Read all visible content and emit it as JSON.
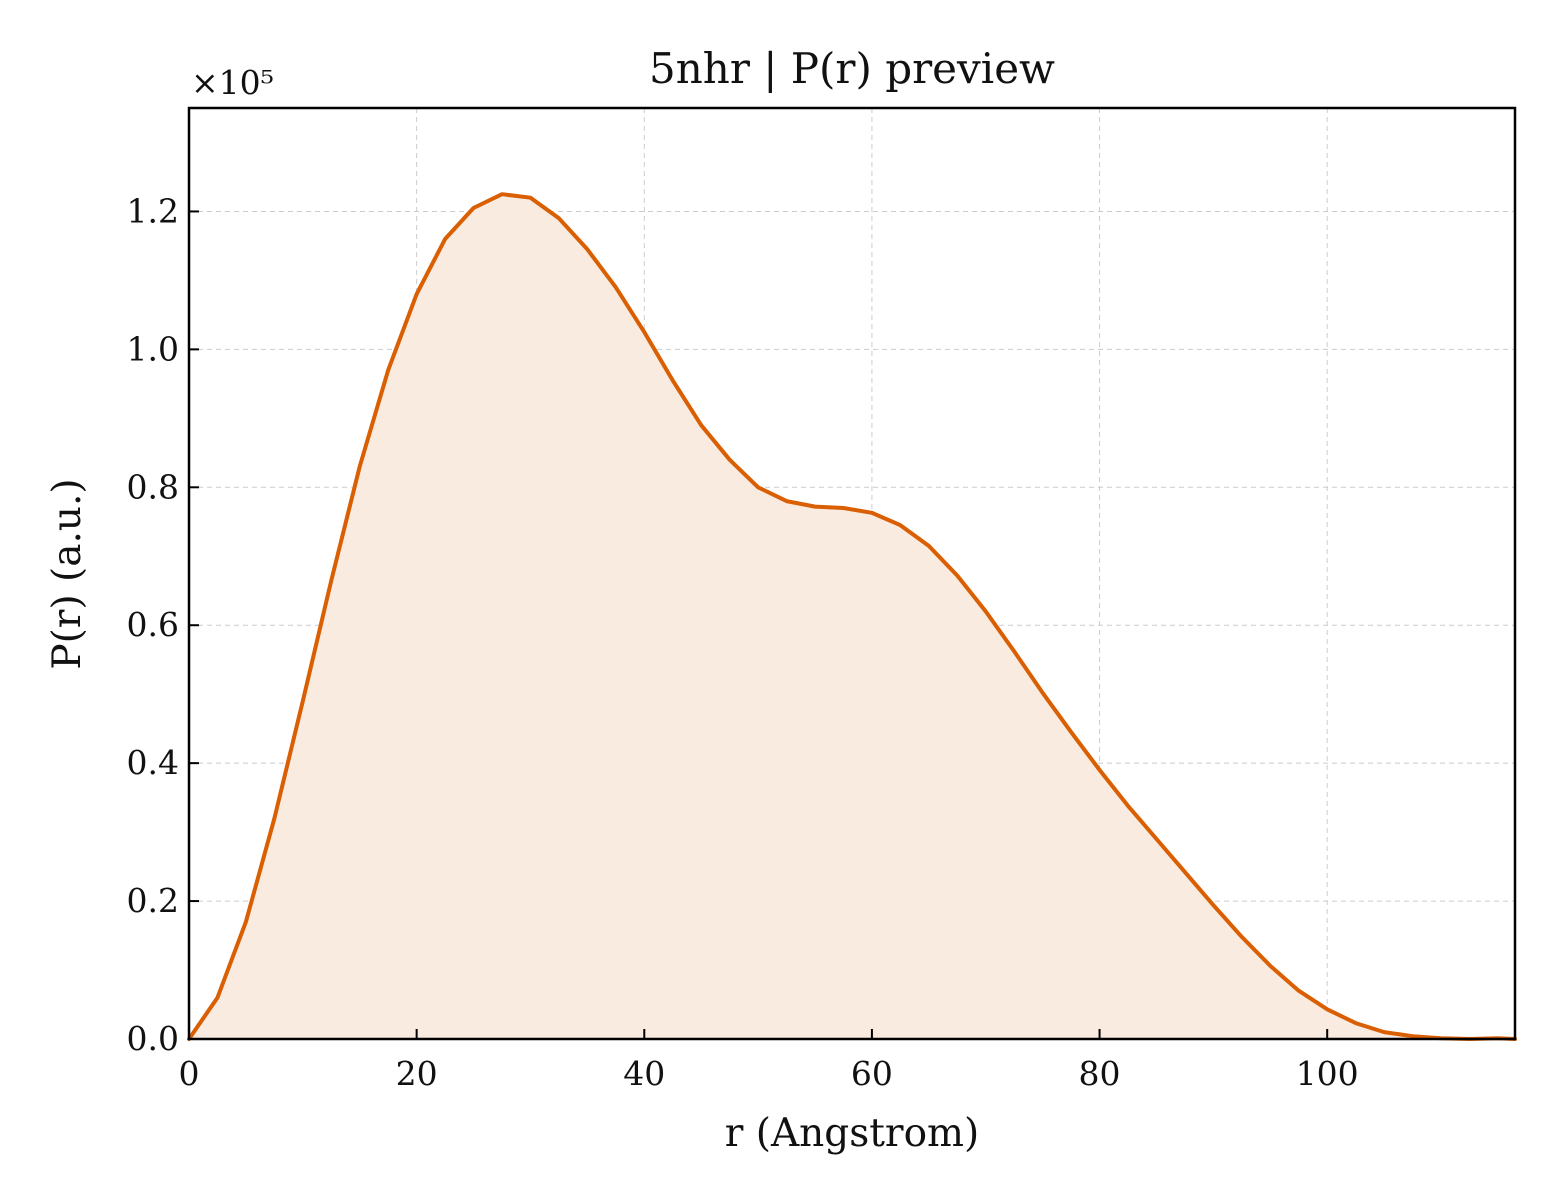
{
  "chart_data": {
    "type": "area",
    "title": "5nhr | P(r) preview",
    "xlabel": "r (Angstrom)",
    "ylabel": "P(r) (a.u.)",
    "y_multiplier_label": "×10⁵",
    "xlim": [
      0,
      116.5
    ],
    "ylim": [
      0,
      1.35
    ],
    "x_ticks": [
      0,
      20,
      40,
      60,
      80,
      100
    ],
    "x_tick_labels": [
      "0",
      "20",
      "40",
      "60",
      "80",
      "100"
    ],
    "y_ticks": [
      0,
      0.2,
      0.4,
      0.6,
      0.8,
      1.0,
      1.2
    ],
    "y_tick_labels": [
      "0.0",
      "0.2",
      "0.4",
      "0.6",
      "0.8",
      "1.0",
      "1.2"
    ],
    "grid": true,
    "line_color": "#d95f02",
    "fill_color": "#f9ebe0",
    "series": [
      {
        "x": [
          0,
          2.5,
          5.0,
          7.5,
          10.0,
          12.5,
          15.0,
          17.5,
          20.0,
          22.5,
          25.0,
          27.5,
          30.0,
          32.5,
          35.0,
          37.5,
          40.0,
          42.5,
          45.0,
          47.5,
          50.0,
          52.5,
          55.0,
          57.5,
          60.0,
          62.5,
          65.0,
          67.5,
          70.0,
          72.5,
          75.0,
          77.5,
          80.0,
          82.5,
          85.0,
          87.5,
          90.0,
          92.5,
          95.0,
          97.5,
          100.0,
          102.5,
          105.0,
          107.5,
          110.0,
          112.5,
          115.0,
          116.5
        ],
        "y": [
          0.0,
          0.06,
          0.17,
          0.32,
          0.49,
          0.665,
          0.83,
          0.97,
          1.08,
          1.16,
          1.205,
          1.225,
          1.22,
          1.19,
          1.145,
          1.09,
          1.025,
          0.955,
          0.89,
          0.84,
          0.8,
          0.78,
          0.772,
          0.77,
          0.763,
          0.745,
          0.715,
          0.672,
          0.62,
          0.562,
          0.502,
          0.445,
          0.39,
          0.338,
          0.29,
          0.242,
          0.194,
          0.148,
          0.106,
          0.07,
          0.043,
          0.023,
          0.01,
          0.004,
          0.001,
          0.0,
          0.001,
          0.0
        ]
      }
    ]
  }
}
